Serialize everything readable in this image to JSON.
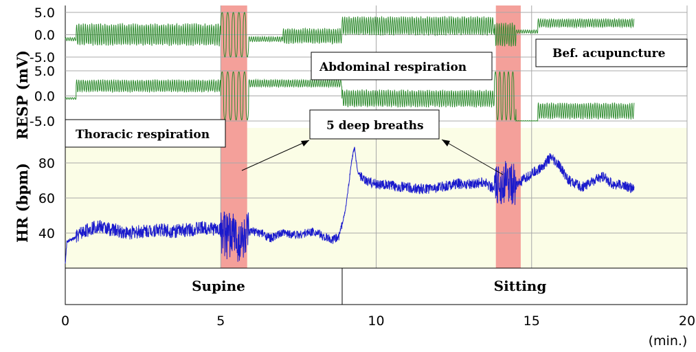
{
  "chart_data": {
    "type": "line",
    "x_axis": {
      "ticks": [
        "0",
        "5",
        "10",
        "15",
        "20"
      ],
      "unit_label": "(min.)",
      "range": [
        0,
        20
      ]
    },
    "panels": [
      {
        "id": "resp_thoracic",
        "ylabel": "RESP (mV)",
        "ytick_labels": [
          "5.0",
          "0.0",
          "-5.0"
        ],
        "ylim": [
          -5,
          5
        ],
        "color": "#2e8b2e",
        "segments": [
          {
            "x_start": 0.0,
            "x_end": 0.35,
            "center": -1.0,
            "amplitude": 0.4
          },
          {
            "x_start": 0.35,
            "x_end": 5.0,
            "center": 0.0,
            "amplitude": 2.6
          },
          {
            "x_start": 5.0,
            "x_end": 5.9,
            "center": 0.0,
            "amplitude": 5.0
          },
          {
            "x_start": 5.9,
            "x_end": 7.0,
            "center": -1.0,
            "amplitude": 0.6
          },
          {
            "x_start": 7.0,
            "x_end": 8.9,
            "center": -0.3,
            "amplitude": 1.8
          },
          {
            "x_start": 8.9,
            "x_end": 13.8,
            "center": 2.0,
            "amplitude": 2.2
          },
          {
            "x_start": 13.8,
            "x_end": 14.5,
            "center": 0.0,
            "amplitude": 2.8
          },
          {
            "x_start": 14.5,
            "x_end": 15.2,
            "center": 0.7,
            "amplitude": 0.4
          },
          {
            "x_start": 15.2,
            "x_end": 18.3,
            "center": 2.6,
            "amplitude": 1.0
          }
        ]
      },
      {
        "id": "resp_abdominal",
        "ylabel": "",
        "ytick_labels": [
          "5.0",
          "0.0",
          "-5.0"
        ],
        "ylim": [
          -5,
          5
        ],
        "color": "#2e8b2e",
        "segments": [
          {
            "x_start": 0.0,
            "x_end": 0.35,
            "center": -0.5,
            "amplitude": 0.2
          },
          {
            "x_start": 0.35,
            "x_end": 5.0,
            "center": 2.0,
            "amplitude": 1.3
          },
          {
            "x_start": 5.0,
            "x_end": 5.9,
            "center": 0.0,
            "amplitude": 4.8
          },
          {
            "x_start": 5.9,
            "x_end": 8.9,
            "center": 2.5,
            "amplitude": 0.8
          },
          {
            "x_start": 8.9,
            "x_end": 13.8,
            "center": -0.5,
            "amplitude": 1.8
          },
          {
            "x_start": 13.8,
            "x_end": 14.5,
            "center": 0.0,
            "amplitude": 4.8
          },
          {
            "x_start": 14.5,
            "x_end": 15.2,
            "center": -5.0,
            "amplitude": 0.1
          },
          {
            "x_start": 15.2,
            "x_end": 18.3,
            "center": -3.0,
            "amplitude": 1.7
          }
        ]
      },
      {
        "id": "hr",
        "ylabel": "HR (bpm)",
        "ytick_labels": [
          "80",
          "60",
          "40"
        ],
        "ylim": [
          20,
          100
        ],
        "color": "#1a1acc",
        "background": "#fbfde6",
        "points": [
          [
            0.0,
            22
          ],
          [
            0.05,
            35
          ],
          [
            0.3,
            37
          ],
          [
            0.5,
            40
          ],
          [
            1.0,
            44
          ],
          [
            1.5,
            42
          ],
          [
            2.0,
            40
          ],
          [
            2.5,
            41
          ],
          [
            3.0,
            42
          ],
          [
            3.5,
            41
          ],
          [
            4.0,
            42
          ],
          [
            4.5,
            43
          ],
          [
            5.0,
            42
          ],
          [
            5.2,
            38
          ],
          [
            5.4,
            40
          ],
          [
            5.6,
            35
          ],
          [
            5.8,
            38
          ],
          [
            6.0,
            41
          ],
          [
            6.3,
            40
          ],
          [
            6.6,
            37
          ],
          [
            7.0,
            40
          ],
          [
            7.5,
            39
          ],
          [
            8.0,
            41
          ],
          [
            8.3,
            38
          ],
          [
            8.6,
            36
          ],
          [
            8.8,
            38
          ],
          [
            9.0,
            52
          ],
          [
            9.1,
            65
          ],
          [
            9.2,
            80
          ],
          [
            9.3,
            89
          ],
          [
            9.4,
            75
          ],
          [
            9.6,
            70
          ],
          [
            10.0,
            68
          ],
          [
            10.5,
            67
          ],
          [
            11.0,
            66
          ],
          [
            11.5,
            65
          ],
          [
            12.0,
            66
          ],
          [
            12.5,
            68
          ],
          [
            13.0,
            68
          ],
          [
            13.5,
            69
          ],
          [
            13.8,
            65
          ],
          [
            14.0,
            68
          ],
          [
            14.2,
            70
          ],
          [
            14.5,
            67
          ],
          [
            14.8,
            71
          ],
          [
            15.0,
            74
          ],
          [
            15.3,
            77
          ],
          [
            15.6,
            83
          ],
          [
            15.9,
            78
          ],
          [
            16.2,
            70
          ],
          [
            16.6,
            66
          ],
          [
            17.0,
            70
          ],
          [
            17.3,
            72
          ],
          [
            17.6,
            68
          ],
          [
            18.0,
            67
          ],
          [
            18.3,
            65
          ]
        ],
        "noise": [
          {
            "x_start": 0.35,
            "x_end": 5.0,
            "amplitude": 4
          },
          {
            "x_start": 5.0,
            "x_end": 5.9,
            "amplitude": 13
          },
          {
            "x_start": 5.9,
            "x_end": 8.9,
            "amplitude": 2.5
          },
          {
            "x_start": 9.5,
            "x_end": 13.8,
            "amplitude": 3
          },
          {
            "x_start": 13.8,
            "x_end": 14.5,
            "amplitude": 12
          },
          {
            "x_start": 14.5,
            "x_end": 18.3,
            "amplitude": 3
          }
        ]
      }
    ],
    "highlights": [
      {
        "x_start": 5.0,
        "x_end": 5.85,
        "color": "#f4a09a"
      },
      {
        "x_start": 13.85,
        "x_end": 14.65,
        "color": "#f4a09a"
      }
    ],
    "phases": [
      {
        "label": "Supine",
        "x_start": 0,
        "x_end": 8.9
      },
      {
        "label": "Sitting",
        "x_start": 8.9,
        "x_end": 20
      }
    ],
    "annotations": {
      "thoracic": "Thoracic respiration",
      "abdominal": "Abdominal respiration",
      "deep_breaths": "5 deep breaths",
      "bef_acupuncture": "Bef. acupuncture"
    }
  }
}
